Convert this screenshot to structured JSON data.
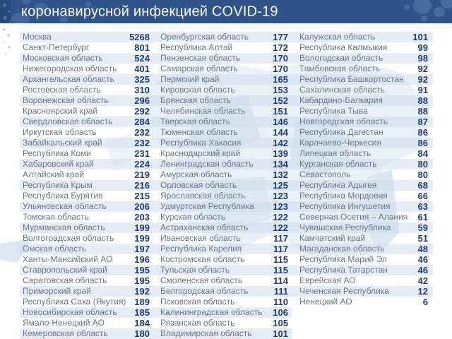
{
  "header": {
    "title": "коронавирусной инфекцией COVID-19"
  },
  "colors": {
    "header_bg": "#30548a",
    "header_decor": "#41659e",
    "edge_strip": "#284a7d",
    "row_stripe": "#dce5f1",
    "region_text": "#68778f",
    "value_text": "#1e3d78",
    "title_text": "#ffffff",
    "map_watermark": "#e8eff7"
  },
  "chart_data": {
    "type": "table",
    "title": "коронавирусной инфекцией COVID-19",
    "legend_position": "none",
    "grid": "striped-rows",
    "columns": [
      {
        "rows": [
          [
            "Москва",
            5268
          ],
          [
            "Санкт-Петербург",
            801
          ],
          [
            "Московская область",
            524
          ],
          [
            "Нижегородская область",
            401
          ],
          [
            "Архангельская область",
            325
          ],
          [
            "Ростовская область",
            310
          ],
          [
            "Воронежская область",
            296
          ],
          [
            "Красноярский край",
            292
          ],
          [
            "Свердловская область",
            284
          ],
          [
            "Иркутская область",
            232
          ],
          [
            "Забайкальский край",
            232
          ],
          [
            "Республика Коми",
            231
          ],
          [
            "Хабаровский край",
            224
          ],
          [
            "Алтайский край",
            219
          ],
          [
            "Республика Крым",
            216
          ],
          [
            "Республика Бурятия",
            215
          ],
          [
            "Ульяновская область",
            206
          ],
          [
            "Томская область",
            203
          ],
          [
            "Мурманская область",
            199
          ],
          [
            "Волгоградская область",
            199
          ],
          [
            "Омская область",
            197
          ],
          [
            "Ханты-Мансийский АО",
            196
          ],
          [
            "Ставропольский край",
            195
          ],
          [
            "Саратовская область",
            195
          ],
          [
            "Приморский край",
            192
          ],
          [
            "Республика Саха (Якутия)",
            189
          ],
          [
            "Новосибирская область",
            185
          ],
          [
            "Ямало-Ненецкий АО",
            184
          ],
          [
            "Кемеровская область",
            180
          ]
        ]
      },
      {
        "rows": [
          [
            "Оренбургская область",
            177
          ],
          [
            "Республика Алтай",
            172
          ],
          [
            "Пензенская область",
            170
          ],
          [
            "Самарская область",
            170
          ],
          [
            "Пермский край",
            165
          ],
          [
            "Кировская область",
            153
          ],
          [
            "Брянская область",
            152
          ],
          [
            "Челябинская область",
            151
          ],
          [
            "Тверская область",
            146
          ],
          [
            "Тюменская область",
            144
          ],
          [
            "Республика Хакасия",
            142
          ],
          [
            "Краснодарский край",
            139
          ],
          [
            "Ленинградская область",
            134
          ],
          [
            "Амурская область",
            132
          ],
          [
            "Орловская область",
            125
          ],
          [
            "Ярославская область",
            123
          ],
          [
            "Удмуртская Республика",
            123
          ],
          [
            "Курская область",
            122
          ],
          [
            "Астраханская область",
            122
          ],
          [
            "Ивановская область",
            117
          ],
          [
            "Республика Карелия",
            117
          ],
          [
            "Костромская область",
            115
          ],
          [
            "Тульская область",
            115
          ],
          [
            "Смоленская область",
            114
          ],
          [
            "Белгородская область",
            111
          ],
          [
            "Псковская область",
            110
          ],
          [
            "Калининградская область",
            106
          ],
          [
            "Рязанская область",
            105
          ],
          [
            "Владимирская область",
            101
          ]
        ]
      },
      {
        "rows": [
          [
            "Калужская область",
            101
          ],
          [
            "Республика Калмыкия",
            99
          ],
          [
            "Вологодская область",
            98
          ],
          [
            "Тамбовская область",
            92
          ],
          [
            "Республика Башкортостан",
            92
          ],
          [
            "Сахалинская область",
            91
          ],
          [
            "Кабардино-Балкария",
            88
          ],
          [
            "Республика Тыва",
            88
          ],
          [
            "Новгородская область",
            87
          ],
          [
            "Республика Дагестан",
            86
          ],
          [
            "Карачаево-Черкесия",
            86
          ],
          [
            "Липецкая область",
            84
          ],
          [
            "Курганская область",
            80
          ],
          [
            "Севастополь",
            80
          ],
          [
            "Республика Адыгея",
            68
          ],
          [
            "Республика Мордовия",
            66
          ],
          [
            "Республика Ингушетия",
            63
          ],
          [
            "Северная Осетия – Алания",
            61
          ],
          [
            "Чувашская Республика",
            59
          ],
          [
            "Камчатский край",
            51
          ],
          [
            "Магаданская область",
            48
          ],
          [
            "Республика Марий Эл",
            46
          ],
          [
            "Республика Татарстан",
            46
          ],
          [
            "Еврейская АО",
            42
          ],
          [
            "Чеченская Республика",
            12
          ],
          [
            "Ненецкий АО",
            6
          ]
        ]
      }
    ]
  }
}
